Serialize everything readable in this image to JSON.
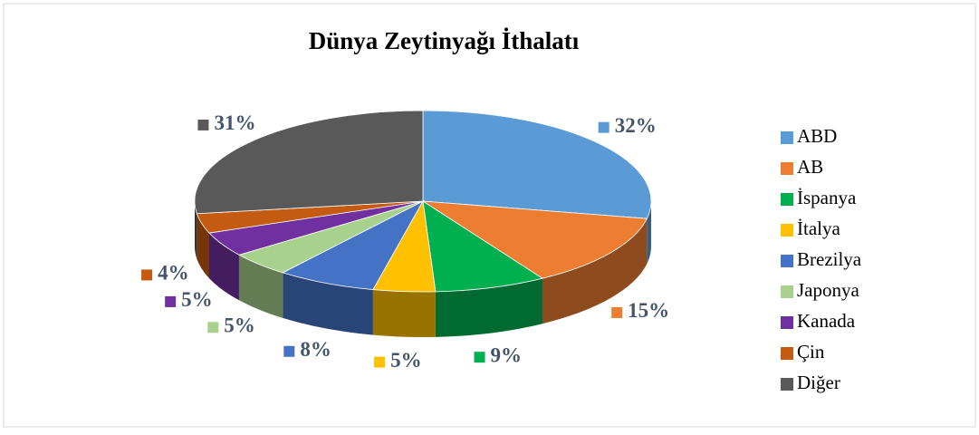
{
  "chart_data": {
    "type": "pie",
    "title": "Dünya Zeytinyağı İthalatı",
    "categories": [
      "ABD",
      "AB",
      "İspanya",
      "İtalya",
      "Brezilya",
      "Japonya",
      "Kanada",
      "Çin",
      "Diğer"
    ],
    "values": [
      32,
      15,
      9,
      5,
      8,
      5,
      5,
      4,
      31
    ],
    "value_labels": [
      "32%",
      "15%",
      "9%",
      "5%",
      "8%",
      "5%",
      "5%",
      "4%",
      "31%"
    ],
    "colors": [
      "#5b9bd5",
      "#ed7d31",
      "#00b050",
      "#ffc000",
      "#4472c4",
      "#a9d18e",
      "#7030a0",
      "#c55a11",
      "#595959"
    ],
    "legend": "right"
  }
}
